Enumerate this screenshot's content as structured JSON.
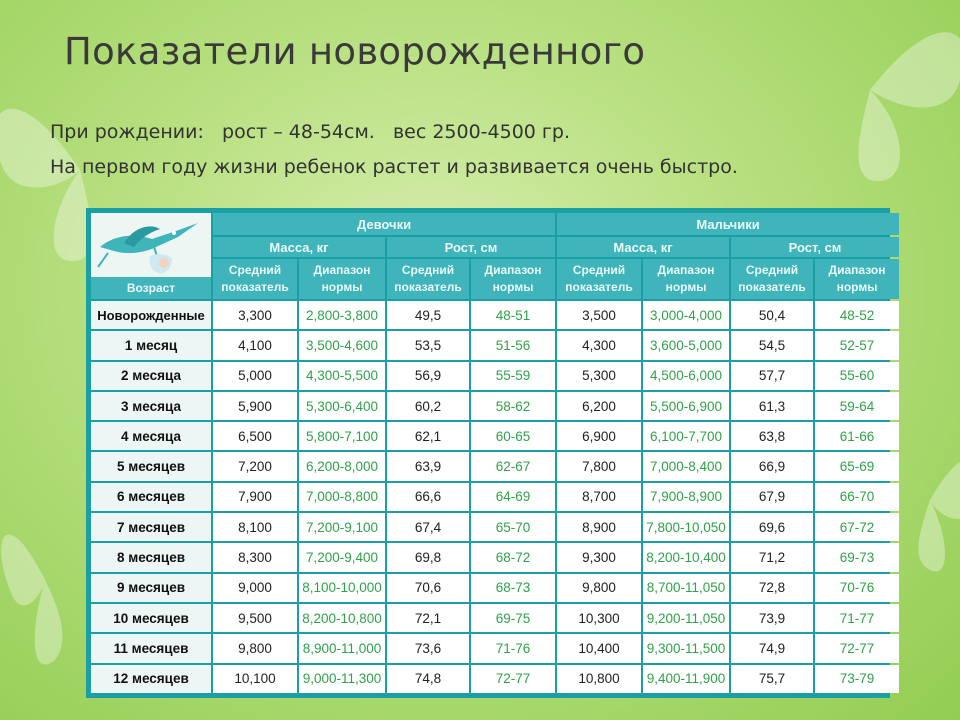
{
  "title": "Показатели новорожденного",
  "at_birth": {
    "label": "При рождении:",
    "height": "рост – 48-54см.",
    "weight": "вес 2500-4500 гр."
  },
  "first_year_note": "На первом году жизни ребенок растет и развивается очень быстро.",
  "table": {
    "age_header": "Возраст",
    "girls_header": "Девочки",
    "boys_header": "Мальчики",
    "mass_header": "Масса, кг",
    "height_header": "Рост, см",
    "avg_header": "Средний показатель",
    "range_header": "Диапазон нормы",
    "rows": [
      {
        "age": "Новорожденные",
        "g_mass": "3,300",
        "g_mass_rng": "2,800-3,800",
        "g_h": "49,5",
        "g_h_rng": "48-51",
        "b_mass": "3,500",
        "b_mass_rng": "3,000-4,000",
        "b_h": "50,4",
        "b_h_rng": "48-52"
      },
      {
        "age": "1 месяц",
        "g_mass": "4,100",
        "g_mass_rng": "3,500-4,600",
        "g_h": "53,5",
        "g_h_rng": "51-56",
        "b_mass": "4,300",
        "b_mass_rng": "3,600-5,000",
        "b_h": "54,5",
        "b_h_rng": "52-57"
      },
      {
        "age": "2 месяца",
        "g_mass": "5,000",
        "g_mass_rng": "4,300-5,500",
        "g_h": "56,9",
        "g_h_rng": "55-59",
        "b_mass": "5,300",
        "b_mass_rng": "4,500-6,000",
        "b_h": "57,7",
        "b_h_rng": "55-60"
      },
      {
        "age": "3 месяца",
        "g_mass": "5,900",
        "g_mass_rng": "5,300-6,400",
        "g_h": "60,2",
        "g_h_rng": "58-62",
        "b_mass": "6,200",
        "b_mass_rng": "5,500-6,900",
        "b_h": "61,3",
        "b_h_rng": "59-64"
      },
      {
        "age": "4 месяца",
        "g_mass": "6,500",
        "g_mass_rng": "5,800-7,100",
        "g_h": "62,1",
        "g_h_rng": "60-65",
        "b_mass": "6,900",
        "b_mass_rng": "6,100-7,700",
        "b_h": "63,8",
        "b_h_rng": "61-66"
      },
      {
        "age": "5 месяцев",
        "g_mass": "7,200",
        "g_mass_rng": "6,200-8,000",
        "g_h": "63,9",
        "g_h_rng": "62-67",
        "b_mass": "7,800",
        "b_mass_rng": "7,000-8,400",
        "b_h": "66,9",
        "b_h_rng": "65-69"
      },
      {
        "age": "6 месяцев",
        "g_mass": "7,900",
        "g_mass_rng": "7,000-8,800",
        "g_h": "66,6",
        "g_h_rng": "64-69",
        "b_mass": "8,700",
        "b_mass_rng": "7,900-8,900",
        "b_h": "67,9",
        "b_h_rng": "66-70"
      },
      {
        "age": "7 месяцев",
        "g_mass": "8,100",
        "g_mass_rng": "7,200-9,100",
        "g_h": "67,4",
        "g_h_rng": "65-70",
        "b_mass": "8,900",
        "b_mass_rng": "7,800-10,050",
        "b_h": "69,6",
        "b_h_rng": "67-72"
      },
      {
        "age": "8 месяцев",
        "g_mass": "8,300",
        "g_mass_rng": "7,200-9,400",
        "g_h": "69,8",
        "g_h_rng": "68-72",
        "b_mass": "9,300",
        "b_mass_rng": "8,200-10,400",
        "b_h": "71,2",
        "b_h_rng": "69-73"
      },
      {
        "age": "9 месяцев",
        "g_mass": "9,000",
        "g_mass_rng": "8,100-10,000",
        "g_h": "70,6",
        "g_h_rng": "68-73",
        "b_mass": "9,800",
        "b_mass_rng": "8,700-11,050",
        "b_h": "72,8",
        "b_h_rng": "70-76"
      },
      {
        "age": "10 месяцев",
        "g_mass": "9,500",
        "g_mass_rng": "8,200-10,800",
        "g_h": "72,1",
        "g_h_rng": "69-75",
        "b_mass": "10,300",
        "b_mass_rng": "9,200-11,050",
        "b_h": "73,9",
        "b_h_rng": "71-77"
      },
      {
        "age": "11 месяцев",
        "g_mass": "9,800",
        "g_mass_rng": "8,900-11,000",
        "g_h": "73,6",
        "g_h_rng": "71-76",
        "b_mass": "10,400",
        "b_mass_rng": "9,300-11,500",
        "b_h": "74,9",
        "b_h_rng": "72-77"
      },
      {
        "age": "12 месяцев",
        "g_mass": "10,100",
        "g_mass_rng": "9,000-11,300",
        "g_h": "74,8",
        "g_h_rng": "72-77",
        "b_mass": "10,800",
        "b_mass_rng": "9,400-11,900",
        "b_h": "75,7",
        "b_h_rng": "73-79"
      }
    ]
  }
}
